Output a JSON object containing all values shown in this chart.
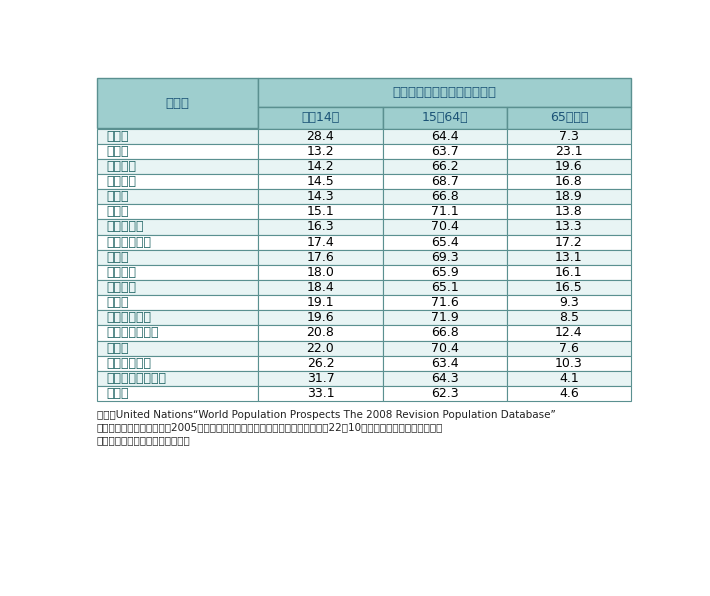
{
  "header_main": "年齢（３区分）別割合（％）",
  "header_country": "国　名",
  "sub_headers": [
    "０～14歳",
    "15～64歳",
    "65歳以上"
  ],
  "rows": [
    [
      "世　界",
      "28.4",
      "64.4",
      "7.3"
    ],
    [
      "日　本",
      "13.2",
      "63.7",
      "23.1"
    ],
    [
      "イタリア",
      "14.2",
      "66.2",
      "19.6"
    ],
    [
      "スペイン",
      "14.5",
      "68.7",
      "16.8"
    ],
    [
      "ドイツ",
      "14.3",
      "66.8",
      "18.9"
    ],
    [
      "ロシア",
      "15.1",
      "71.1",
      "13.8"
    ],
    [
      "ポーランド",
      "16.3",
      "70.4",
      "13.3"
    ],
    [
      "スウェーデン",
      "17.4",
      "65.4",
      "17.2"
    ],
    [
      "カナダ",
      "17.6",
      "69.3",
      "13.1"
    ],
    [
      "イギリス",
      "18.0",
      "65.9",
      "16.1"
    ],
    [
      "フランス",
      "18.4",
      "65.1",
      "16.5"
    ],
    [
      "韓　国",
      "19.1",
      "71.6",
      "9.3"
    ],
    [
      "シンガポール",
      "19.6",
      "71.9",
      "8.5"
    ],
    [
      "アメリカ合衆国",
      "20.8",
      "66.8",
      "12.4"
    ],
    [
      "中　国",
      "22.0",
      "70.4",
      "7.6"
    ],
    [
      "アルゼンチン",
      "26.2",
      "63.4",
      "10.3"
    ],
    [
      "南アフリカ共和国",
      "31.7",
      "64.3",
      "4.1"
    ],
    [
      "インド",
      "33.1",
      "62.3",
      "4.6"
    ]
  ],
  "footnote1": "資料：United Nations“World Population Prospects The 2008 Revision Population Database”",
  "footnote2": "　注：ただし、諸外国は、2005年時点の数値、日本は総務省「人口推計（平成22年10月１日現在（人口速報を基準",
  "footnote3": "　　とする確定値））」による。",
  "header_bg": "#9ecece",
  "row_bg_light": "#e8f4f4",
  "row_bg_white": "#ffffff",
  "border_color": "#5a9090",
  "header_text_color": "#1a5276",
  "data_text_color": "#000000",
  "country_text_color": "#1a6060"
}
